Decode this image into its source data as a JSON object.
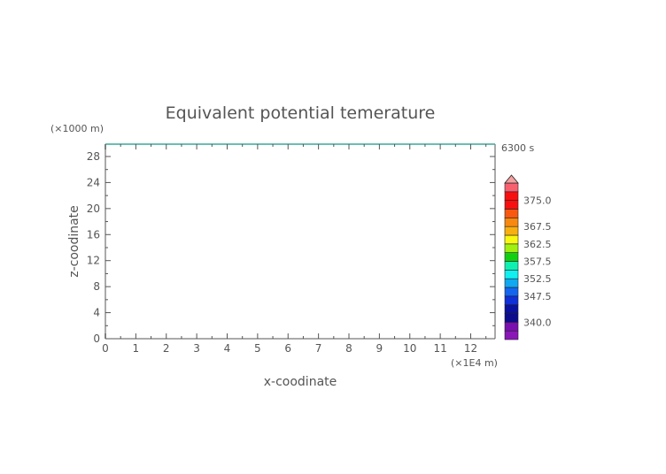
{
  "chart_data": {
    "type": "heatmap",
    "title": "Equivalent potential temerature",
    "xlabel": "x-coodinate",
    "ylabel": "z-coodinate",
    "x_unit": "(×1E4 m)",
    "y_unit": "(×1000 m)",
    "time_label": "6300 s",
    "xlim": [
      0,
      12.8
    ],
    "ylim": [
      0,
      29.9
    ],
    "xticks": [
      "0",
      "1",
      "2",
      "3",
      "4",
      "5",
      "6",
      "7",
      "8",
      "9",
      "10",
      "11",
      "12"
    ],
    "yticks": [
      "0",
      "4",
      "8",
      "12",
      "16",
      "20",
      "24",
      "28"
    ],
    "grid": false,
    "colorbar": {
      "range": [
        335,
        380
      ],
      "step": 2.5,
      "extend": "max",
      "labels": [
        "340.0",
        "347.5",
        "352.5",
        "357.5",
        "362.5",
        "367.5",
        "375.0"
      ],
      "colors": [
        "#8a16b8",
        "#7a10b0",
        "#0c0c8c",
        "#0a10a0",
        "#1030d8",
        "#1466f0",
        "#10a8f0",
        "#10f0f0",
        "#10f0b0",
        "#10d010",
        "#a0f010",
        "#f8f810",
        "#f8b010",
        "#f88810",
        "#f85810",
        "#f81010",
        "#f81010",
        "#f86070",
        "#f87878"
      ],
      "extend_color": "#f4a0a0"
    }
  }
}
